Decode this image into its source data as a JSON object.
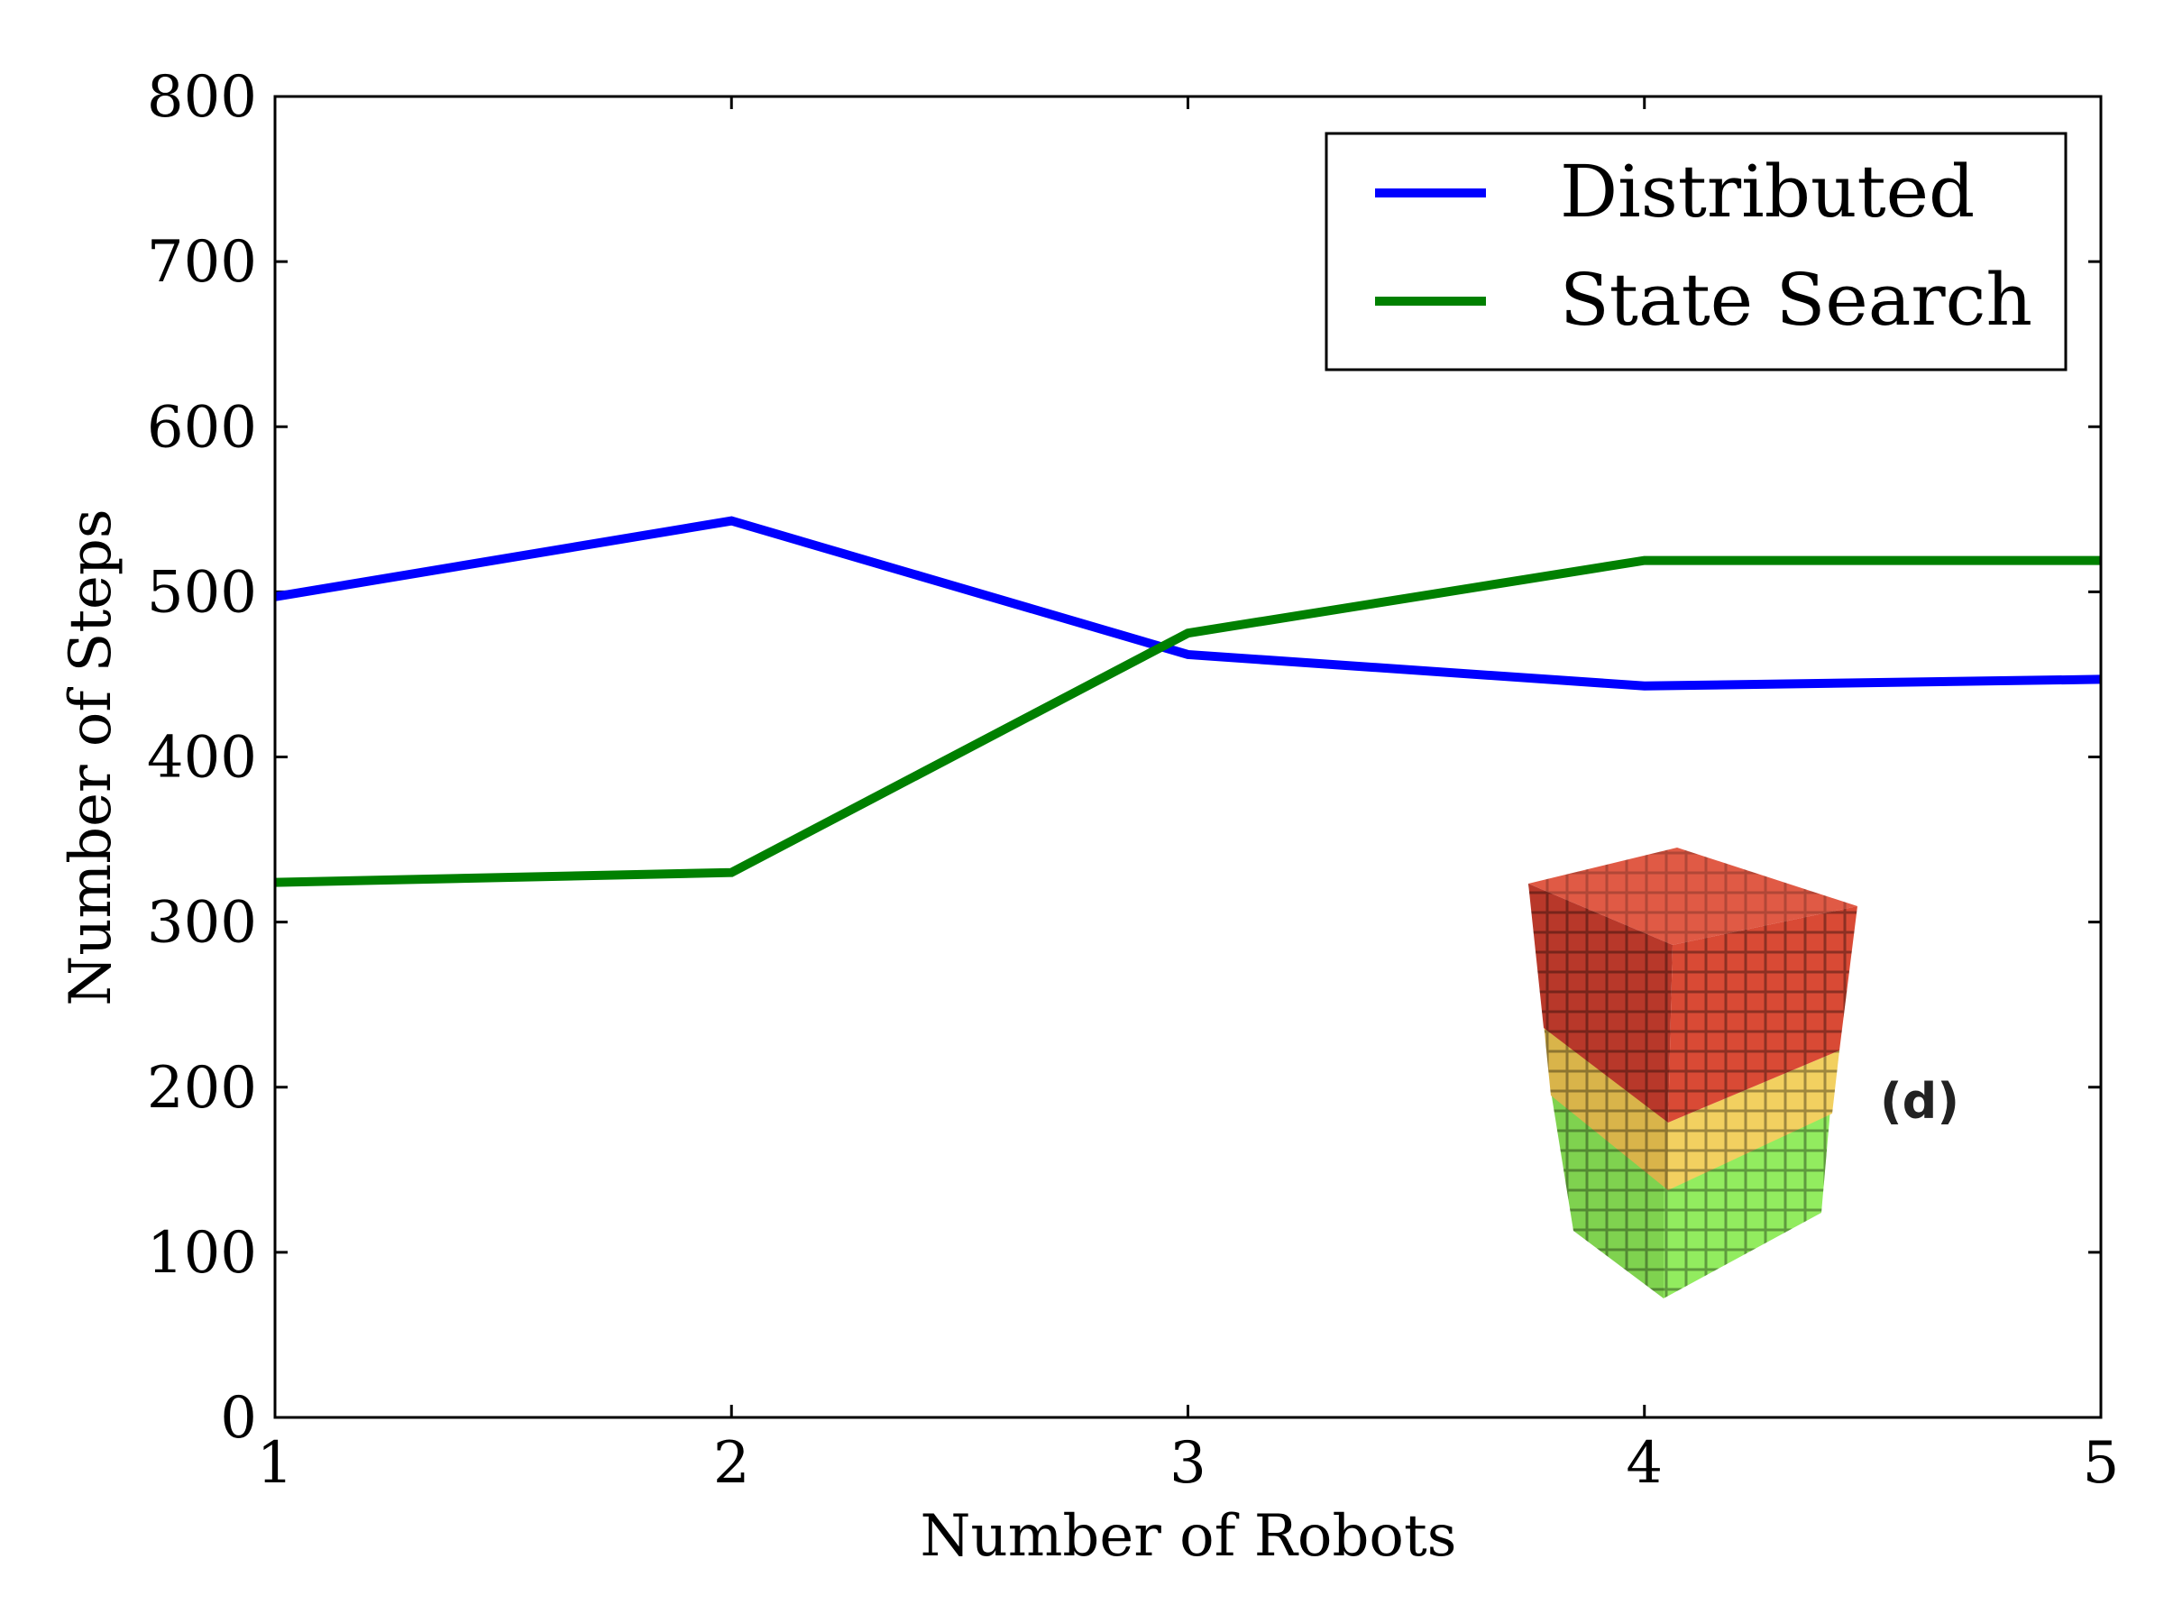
{
  "chart_data": {
    "type": "line",
    "xlabel": "Number of Robots",
    "ylabel": "Number of Steps",
    "x": [
      1,
      2,
      3,
      4,
      5
    ],
    "xlim": [
      1,
      5
    ],
    "ylim": [
      0,
      800
    ],
    "xticks": [
      "1",
      "2",
      "3",
      "4",
      "5"
    ],
    "yticks": [
      "0",
      "100",
      "200",
      "300",
      "400",
      "500",
      "600",
      "700",
      "800"
    ],
    "grid": false,
    "legend_position": "top-right",
    "series": [
      {
        "name": "Distributed",
        "color": "#0000ff",
        "values": [
          497,
          543,
          462,
          443,
          447
        ]
      },
      {
        "name": "State Search",
        "color": "#008000",
        "values": [
          324,
          330,
          475,
          519,
          519
        ]
      }
    ],
    "annotations": [
      {
        "text": "(d)"
      }
    ]
  },
  "inset": {
    "label": "(d)",
    "colors": {
      "top": "#d94a35",
      "middle": "#f2d060",
      "bottom": "#92ec5f"
    }
  }
}
